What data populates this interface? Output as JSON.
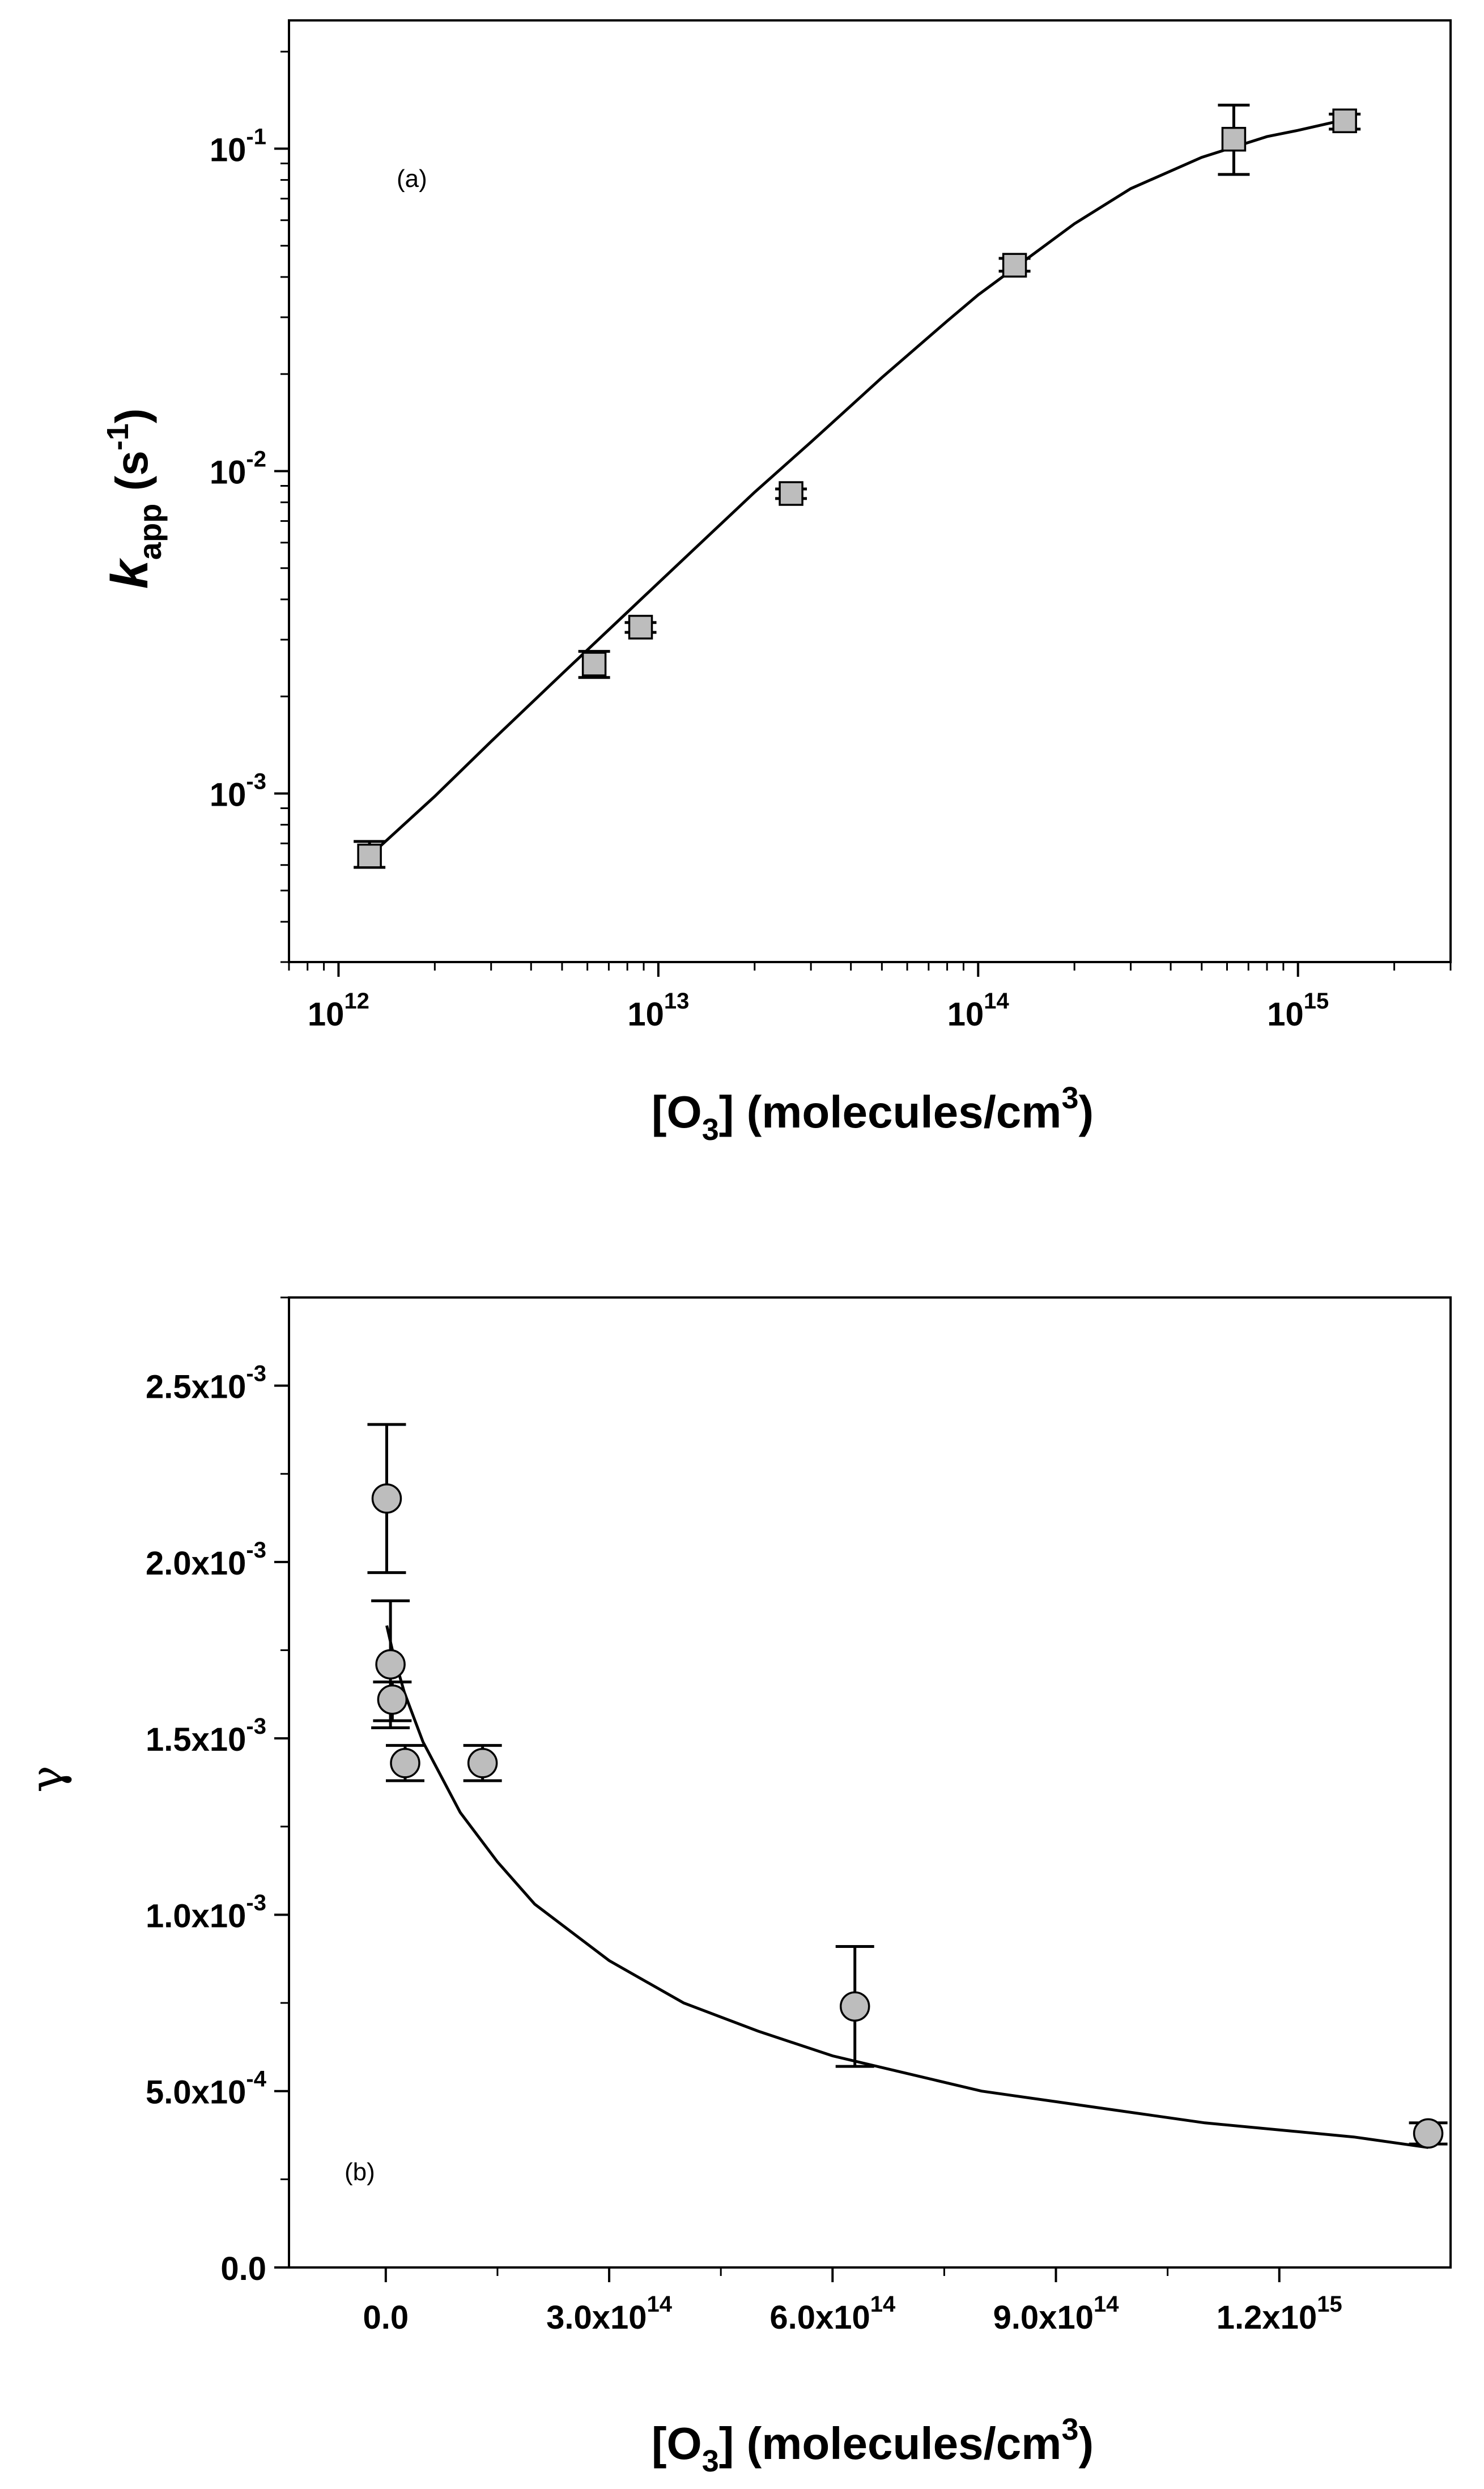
{
  "chart_data": [
    {
      "panel": "(a)",
      "type": "scatter",
      "title": "",
      "xlabel": "[O3] (molecules/cm3)",
      "xlabel_parts": {
        "open": "[O",
        "sub": "3",
        "close": "] (molecules/cm",
        "sup": "3",
        "end": ")"
      },
      "ylabel": "kapp (s-1)",
      "ylabel_parts": {
        "main": "k",
        "sub": "app",
        "unit_open": " (s",
        "sup": "-1",
        "unit_close": ")"
      },
      "xscale": "log",
      "yscale": "log",
      "xlim": [
        700000000000.0,
        3000000000000000.0
      ],
      "ylim": [
        0.0003,
        0.25
      ],
      "xticks": [
        {
          "value": 1000000000000.0,
          "base": "10",
          "exp": "12"
        },
        {
          "value": 10000000000000.0,
          "base": "10",
          "exp": "13"
        },
        {
          "value": 100000000000000.0,
          "base": "10",
          "exp": "14"
        },
        {
          "value": 1000000000000000.0,
          "base": "10",
          "exp": "15"
        }
      ],
      "yticks": [
        {
          "value": 0.001,
          "base": "10",
          "exp": "-3"
        },
        {
          "value": 0.01,
          "base": "10",
          "exp": "-2"
        },
        {
          "value": 0.1,
          "base": "10",
          "exp": "-1"
        }
      ],
      "marker": "square",
      "marker_color": "#bdbdbd",
      "points": [
        {
          "x": 1250000000000.0,
          "y": 0.00064,
          "yerr_low": 0.00059,
          "yerr_high": 0.00071
        },
        {
          "x": 6300000000000.0,
          "y": 0.00252,
          "yerr_low": 0.00229,
          "yerr_high": 0.00276
        },
        {
          "x": 8800000000000.0,
          "y": 0.00328,
          "yerr_low": 0.00316,
          "yerr_high": 0.00339
        },
        {
          "x": 26000000000000.0,
          "y": 0.00852,
          "yerr_low": 0.00822,
          "yerr_high": 0.0088
        },
        {
          "x": 130000000000000.0,
          "y": 0.0435,
          "yerr_low": 0.0417,
          "yerr_high": 0.0457
        },
        {
          "x": 630000000000000.0,
          "y": 0.107,
          "yerr_low": 0.0832,
          "yerr_high": 0.1365
        },
        {
          "x": 1400000000000000.0,
          "y": 0.122,
          "yerr_low": 0.115,
          "yerr_high": 0.128
        }
      ],
      "fit_curve": {
        "x": [
          1250000000000.0,
          2000000000000.0,
          3000000000000.0,
          5000000000000.0,
          8000000000000.0,
          10000000000000.0,
          20000000000000.0,
          30000000000000.0,
          50000000000000.0,
          80000000000000.0,
          100000000000000.0,
          200000000000000.0,
          300000000000000.0,
          500000000000000.0,
          800000000000000.0,
          1000000000000000.0,
          1400000000000000.0
        ],
        "y": [
          0.00064,
          0.00098,
          0.00145,
          0.00235,
          0.00365,
          0.0045,
          0.0086,
          0.0123,
          0.0195,
          0.0292,
          0.0352,
          0.0585,
          0.0752,
          0.094,
          0.109,
          0.114,
          0.123
        ]
      }
    },
    {
      "panel": "(b)",
      "type": "scatter",
      "title": "",
      "xlabel": "[O3] (molecules/cm3)",
      "xlabel_parts": {
        "open": "[O",
        "sub": "3",
        "close": "] (molecules/cm",
        "sup": "3",
        "end": ")"
      },
      "ylabel": "γ",
      "xscale": "linear",
      "yscale": "linear",
      "xlim": [
        -130000000000000.0,
        1430000000000000.0
      ],
      "ylim": [
        0,
        0.00275
      ],
      "xticks": [
        {
          "value": 0,
          "label": "0.0"
        },
        {
          "value": 300000000000000.0,
          "mant": "3.0x10",
          "exp": "14"
        },
        {
          "value": 600000000000000.0,
          "mant": "6.0x10",
          "exp": "14"
        },
        {
          "value": 900000000000000.0,
          "mant": "9.0x10",
          "exp": "14"
        },
        {
          "value": 1200000000000000.0,
          "mant": "1.2x10",
          "exp": "15"
        }
      ],
      "yticks": [
        {
          "value": 0,
          "label": "0.0"
        },
        {
          "value": 0.0005,
          "mant": "5.0x10",
          "exp": "-4"
        },
        {
          "value": 0.001,
          "mant": "1.0x10",
          "exp": "-3"
        },
        {
          "value": 0.0015,
          "mant": "1.5x10",
          "exp": "-3"
        },
        {
          "value": 0.002,
          "mant": "2.0x10",
          "exp": "-3"
        },
        {
          "value": 0.0025,
          "mant": "2.5x10",
          "exp": "-3"
        }
      ],
      "marker": "circle",
      "marker_color": "#bdbdbd",
      "points": [
        {
          "x": 1250000000000.0,
          "y": 0.00218,
          "yerr_low": 0.00197,
          "yerr_high": 0.00239
        },
        {
          "x": 6300000000000.0,
          "y": 0.00171,
          "yerr_low": 0.00153,
          "yerr_high": 0.00189
        },
        {
          "x": 8800000000000.0,
          "y": 0.00161,
          "yerr_low": 0.00155,
          "yerr_high": 0.00166
        },
        {
          "x": 26000000000000.0,
          "y": 0.00143,
          "yerr_low": 0.00138,
          "yerr_high": 0.00148
        },
        {
          "x": 130000000000000.0,
          "y": 0.00143,
          "yerr_low": 0.00138,
          "yerr_high": 0.00148
        },
        {
          "x": 630000000000000.0,
          "y": 0.00074,
          "yerr_low": 0.00057,
          "yerr_high": 0.00091
        },
        {
          "x": 1400000000000000.0,
          "y": 0.00038,
          "yerr_low": 0.00035,
          "yerr_high": 0.00041
        }
      ],
      "fit_curve": {
        "x": [
          1250000000000.0,
          10000000000000.0,
          25000000000000.0,
          50000000000000.0,
          100000000000000.0,
          150000000000000.0,
          200000000000000.0,
          300000000000000.0,
          400000000000000.0,
          500000000000000.0,
          600000000000000.0,
          700000000000000.0,
          800000000000000.0,
          900000000000000.0,
          1000000000000000.0,
          1100000000000000.0,
          1200000000000000.0,
          1300000000000000.0,
          1400000000000000.0
        ],
        "y": [
          0.00182,
          0.00174,
          0.00163,
          0.00149,
          0.00129,
          0.00115,
          0.00103,
          0.00087,
          0.00075,
          0.00067,
          0.0006,
          0.00055,
          0.0005,
          0.00047,
          0.00044,
          0.00041,
          0.00039,
          0.00037,
          0.00034
        ]
      }
    }
  ]
}
